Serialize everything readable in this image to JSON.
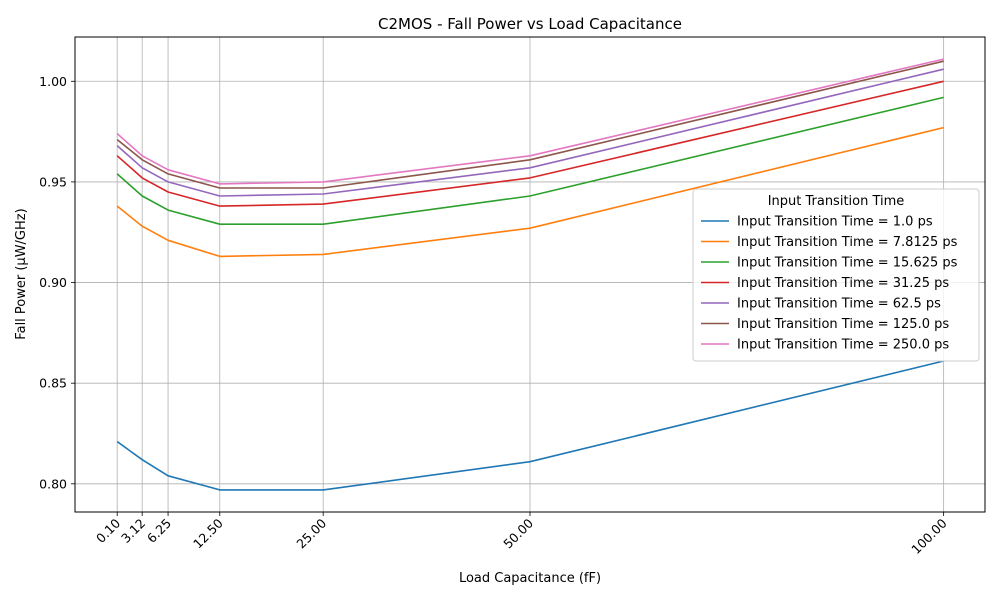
{
  "chart_data": {
    "type": "line",
    "title": "C2MOS - Fall Power vs Load Capacitance",
    "xlabel": "Load Capacitance (fF)",
    "ylabel": "Fall Power (µW/GHz)",
    "x": [
      0.1,
      3.12,
      6.25,
      12.5,
      25.0,
      50.0,
      100.0
    ],
    "x_tick_labels": [
      "0.10",
      "3.12",
      "6.25",
      "12.50",
      "25.00",
      "50.00",
      "100.00"
    ],
    "y_ticks": [
      0.8,
      0.85,
      0.9,
      0.95,
      1.0
    ],
    "y_tick_labels": [
      "0.80",
      "0.85",
      "0.90",
      "0.95",
      "1.00"
    ],
    "xlim": [
      -5.0,
      105.0
    ],
    "ylim": [
      0.786,
      1.022
    ],
    "grid": true,
    "legend": {
      "title": "Input Transition Time",
      "placement": "center-right"
    },
    "series": [
      {
        "name": "Input Transition Time = 1.0 ps",
        "color": "#1f77b4",
        "values": [
          0.821,
          0.812,
          0.804,
          0.797,
          0.797,
          0.811,
          0.861
        ]
      },
      {
        "name": "Input Transition Time = 7.8125 ps",
        "color": "#ff7f0e",
        "values": [
          0.938,
          0.928,
          0.921,
          0.913,
          0.914,
          0.927,
          0.977
        ]
      },
      {
        "name": "Input Transition Time = 15.625 ps",
        "color": "#2ca02c",
        "values": [
          0.954,
          0.943,
          0.936,
          0.929,
          0.929,
          0.943,
          0.992
        ]
      },
      {
        "name": "Input Transition Time = 31.25 ps",
        "color": "#d62728",
        "values": [
          0.963,
          0.952,
          0.945,
          0.938,
          0.939,
          0.952,
          1.0
        ]
      },
      {
        "name": "Input Transition Time = 62.5 ps",
        "color": "#9467bd",
        "values": [
          0.968,
          0.957,
          0.95,
          0.943,
          0.944,
          0.957,
          1.006
        ]
      },
      {
        "name": "Input Transition Time = 125.0 ps",
        "color": "#8c564b",
        "values": [
          0.971,
          0.961,
          0.954,
          0.947,
          0.947,
          0.961,
          1.01
        ]
      },
      {
        "name": "Input Transition Time = 250.0 ps",
        "color": "#e377c2",
        "values": [
          0.974,
          0.963,
          0.956,
          0.949,
          0.95,
          0.963,
          1.011
        ]
      }
    ]
  }
}
